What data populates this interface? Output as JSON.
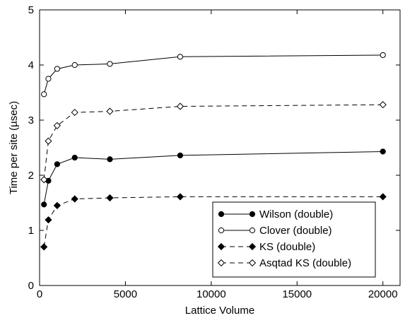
{
  "chart_data": {
    "type": "line",
    "title": "",
    "xlabel": "Lattice Volume",
    "ylabel": "Time per site (µsec)",
    "xlim": [
      0,
      21000
    ],
    "ylim": [
      0,
      5
    ],
    "xticks": [
      0,
      5000,
      10000,
      15000,
      20000
    ],
    "yticks": [
      0,
      1,
      2,
      3,
      4,
      5
    ],
    "grid": false,
    "legend_position": "bottom-right",
    "x": [
      256,
      512,
      1024,
      2048,
      4096,
      8192,
      20000
    ],
    "series": [
      {
        "name": "Wilson (double)",
        "marker": "filled-circle",
        "line": "solid",
        "values": [
          1.47,
          1.9,
          2.2,
          2.32,
          2.29,
          2.36,
          2.43
        ]
      },
      {
        "name": "Clover (double)",
        "marker": "open-circle",
        "line": "solid",
        "values": [
          3.47,
          3.75,
          3.93,
          4.0,
          4.02,
          4.15,
          4.18
        ]
      },
      {
        "name": "KS (double)",
        "marker": "filled-diamond",
        "line": "dashed",
        "values": [
          0.7,
          1.19,
          1.45,
          1.57,
          1.59,
          1.61,
          1.61
        ]
      },
      {
        "name": "Asqtad KS (double)",
        "marker": "open-diamond",
        "line": "dashed",
        "values": [
          1.92,
          2.62,
          2.9,
          3.14,
          3.16,
          3.25,
          3.28
        ]
      }
    ]
  }
}
